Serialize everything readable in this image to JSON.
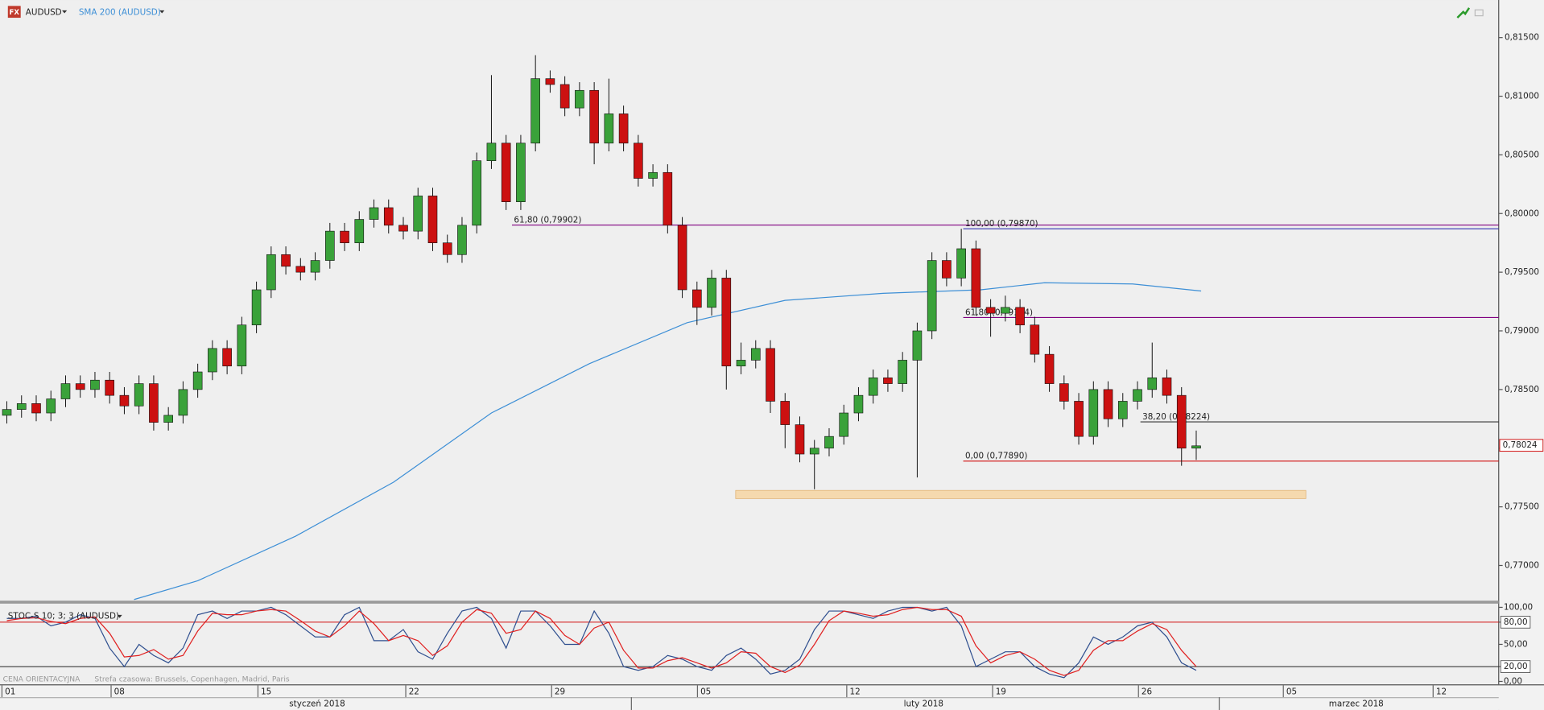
{
  "header": {
    "icon": "FX",
    "symbol": "AUDUSD",
    "footer": "CENA ORIENTACYJNA",
    "timezone": "Strefa czasowa: Brussels, Copenhagen, Madrid, Paris"
  },
  "chart_data": [
    {
      "type": "candlestick",
      "up_color": "#3aa23a",
      "down_color": "#cc1111",
      "grid": false,
      "xlim": [
        -0.4,
        305.8
      ],
      "ylim": [
        0.767,
        0.8182
      ],
      "yticks": [
        {
          "value": 0.77,
          "label": "0,77000"
        },
        {
          "value": 0.775,
          "label": "0,77500"
        },
        {
          "value": 0.78,
          "label": "0,78000"
        },
        {
          "value": 0.785,
          "label": "0,78500"
        },
        {
          "value": 0.79,
          "label": "0,79000"
        },
        {
          "value": 0.795,
          "label": "0,79500"
        },
        {
          "value": 0.8,
          "label": "0,80000"
        },
        {
          "value": 0.805,
          "label": "0,80500"
        },
        {
          "value": 0.81,
          "label": "0,81000"
        },
        {
          "value": 0.815,
          "label": "0,81500"
        }
      ],
      "xticks": [
        {
          "value": 0,
          "label": "01"
        },
        {
          "value": 22.3,
          "label": "08"
        },
        {
          "value": 52.3,
          "label": "15"
        },
        {
          "value": 82.5,
          "label": "22"
        },
        {
          "value": 112.3,
          "label": "29"
        },
        {
          "value": 142.1,
          "label": "05"
        },
        {
          "value": 172.6,
          "label": "12"
        },
        {
          "value": 202.4,
          "label": "19"
        },
        {
          "value": 232.2,
          "label": "26"
        },
        {
          "value": 261.8,
          "label": "05"
        },
        {
          "value": 292.4,
          "label": "12"
        }
      ],
      "months": [
        {
          "value": 64.4,
          "label": "styczeń 2018"
        },
        {
          "value": 188.3,
          "label": "luty 2018"
        },
        {
          "value": 276.7,
          "label": "marzec 2018"
        }
      ],
      "month_breaks": [
        128.6,
        248.7
      ],
      "x": [
        1,
        4,
        7,
        10,
        13,
        16,
        19,
        22,
        25,
        28,
        31,
        34,
        37,
        40,
        43,
        46,
        49,
        52,
        55,
        58,
        61,
        64,
        67,
        70,
        73,
        76,
        79,
        82,
        85,
        88,
        91,
        94,
        97,
        100,
        103,
        106,
        109,
        112,
        115,
        118,
        121,
        124,
        127,
        130,
        133,
        136,
        139,
        142,
        145,
        148,
        151,
        154,
        157,
        160,
        163,
        166,
        169,
        172,
        175,
        178,
        181,
        184,
        187,
        190,
        193,
        196,
        199,
        202,
        205,
        208,
        211,
        214,
        217,
        220,
        223,
        226,
        229,
        232,
        235,
        238,
        241,
        244
      ],
      "open": [
        0.7828,
        0.7833,
        0.7838,
        0.783,
        0.7842,
        0.7855,
        0.785,
        0.7858,
        0.7845,
        0.7836,
        0.7855,
        0.7822,
        0.7828,
        0.785,
        0.7865,
        0.7885,
        0.787,
        0.7905,
        0.7935,
        0.7965,
        0.7955,
        0.795,
        0.796,
        0.7985,
        0.7975,
        0.7995,
        0.8005,
        0.799,
        0.7985,
        0.8015,
        0.7975,
        0.7965,
        0.799,
        0.8045,
        0.806,
        0.801,
        0.806,
        0.8115,
        0.811,
        0.809,
        0.8105,
        0.806,
        0.8085,
        0.806,
        0.803,
        0.8035,
        0.799,
        0.7935,
        0.792,
        0.7945,
        0.787,
        0.7875,
        0.7885,
        0.784,
        0.782,
        0.7795,
        0.78,
        0.781,
        0.783,
        0.7845,
        0.786,
        0.7855,
        0.7875,
        0.79,
        0.796,
        0.7945,
        0.797,
        0.792,
        0.7915,
        0.792,
        0.7905,
        0.788,
        0.7855,
        0.784,
        0.781,
        0.785,
        0.7825,
        0.784,
        0.785,
        0.786,
        0.7845,
        0.78
      ],
      "high": [
        0.784,
        0.7845,
        0.7845,
        0.7849,
        0.7862,
        0.7862,
        0.7865,
        0.7865,
        0.7852,
        0.7862,
        0.7862,
        0.7835,
        0.7857,
        0.7872,
        0.7892,
        0.7892,
        0.7912,
        0.7942,
        0.7972,
        0.7972,
        0.7962,
        0.7967,
        0.7992,
        0.7992,
        0.8002,
        0.8012,
        0.8012,
        0.7997,
        0.8022,
        0.8022,
        0.7982,
        0.7997,
        0.8052,
        0.8118,
        0.8067,
        0.8067,
        0.8135,
        0.8122,
        0.8117,
        0.8112,
        0.8112,
        0.8115,
        0.8092,
        0.8067,
        0.8042,
        0.8042,
        0.7997,
        0.7942,
        0.7952,
        0.7952,
        0.789,
        0.7892,
        0.7892,
        0.7847,
        0.7827,
        0.7807,
        0.7817,
        0.7837,
        0.7852,
        0.7867,
        0.7867,
        0.7882,
        0.7907,
        0.7967,
        0.7967,
        0.7987,
        0.7977,
        0.7927,
        0.793,
        0.7927,
        0.7912,
        0.7887,
        0.7862,
        0.7847,
        0.7857,
        0.7857,
        0.7847,
        0.7857,
        0.789,
        0.7867,
        0.7852,
        0.7815
      ],
      "low": [
        0.7821,
        0.7826,
        0.7823,
        0.7823,
        0.7835,
        0.7843,
        0.7843,
        0.7838,
        0.7829,
        0.7829,
        0.7815,
        0.7815,
        0.7821,
        0.7843,
        0.7858,
        0.7863,
        0.7863,
        0.7898,
        0.7928,
        0.7948,
        0.7943,
        0.7943,
        0.7953,
        0.7968,
        0.7968,
        0.7988,
        0.7983,
        0.7978,
        0.7978,
        0.7968,
        0.7958,
        0.7958,
        0.7983,
        0.8038,
        0.8003,
        0.8003,
        0.8053,
        0.8103,
        0.8083,
        0.8083,
        0.8042,
        0.8053,
        0.8053,
        0.8023,
        0.8023,
        0.7983,
        0.7928,
        0.7905,
        0.7913,
        0.785,
        0.7863,
        0.7868,
        0.783,
        0.78,
        0.7788,
        0.7765,
        0.7793,
        0.7803,
        0.7823,
        0.7838,
        0.7848,
        0.7848,
        0.7775,
        0.7893,
        0.7938,
        0.7938,
        0.7913,
        0.7895,
        0.7908,
        0.7898,
        0.7873,
        0.7848,
        0.7833,
        0.7803,
        0.7803,
        0.7818,
        0.7818,
        0.7833,
        0.7843,
        0.7838,
        0.7785,
        0.779
      ],
      "close": [
        0.7833,
        0.7838,
        0.783,
        0.7842,
        0.7855,
        0.785,
        0.7858,
        0.7845,
        0.7836,
        0.7855,
        0.7822,
        0.7828,
        0.785,
        0.7865,
        0.7885,
        0.787,
        0.7905,
        0.7935,
        0.7965,
        0.7955,
        0.795,
        0.796,
        0.7985,
        0.7975,
        0.7995,
        0.8005,
        0.799,
        0.7985,
        0.8015,
        0.7975,
        0.7965,
        0.799,
        0.8045,
        0.806,
        0.801,
        0.806,
        0.8115,
        0.811,
        0.809,
        0.8105,
        0.806,
        0.8085,
        0.806,
        0.803,
        0.8035,
        0.799,
        0.7935,
        0.792,
        0.7945,
        0.787,
        0.7875,
        0.7885,
        0.784,
        0.782,
        0.7795,
        0.78,
        0.781,
        0.783,
        0.7845,
        0.786,
        0.7855,
        0.7875,
        0.79,
        0.796,
        0.7945,
        0.797,
        0.792,
        0.7915,
        0.792,
        0.7905,
        0.788,
        0.7855,
        0.784,
        0.781,
        0.785,
        0.7825,
        0.784,
        0.785,
        0.786,
        0.7845,
        0.78,
        0.7802
      ],
      "overlays": [
        {
          "name": "SMA 200 (AUDUSD)",
          "color": "#3d8fd6",
          "x": [
            27,
            40,
            60,
            80,
            100,
            120,
            140,
            160,
            180,
            200,
            213,
            231,
            245
          ],
          "values": [
            0.7671,
            0.7687,
            0.7725,
            0.7771,
            0.783,
            0.7872,
            0.7907,
            0.7926,
            0.7932,
            0.7935,
            0.7941,
            0.794,
            0.7934
          ]
        }
      ],
      "fib_levels": [
        {
          "label": "61,80 (0,79902)",
          "value": 0.79902,
          "x_start": 104.2,
          "color": "#800080"
        },
        {
          "label": "100,00 (0,79870)",
          "value": 0.7987,
          "x_start": 196.4,
          "color": "#3030b0"
        },
        {
          "label": "61,80 (0,79114)",
          "value": 0.79114,
          "x_start": 196.4,
          "color": "#800080"
        },
        {
          "label": "38,20 (0,78224)",
          "value": 0.78224,
          "x_start": 232.6,
          "color": "#333333"
        },
        {
          "label": "0,00 (0,77890)",
          "value": 0.7789,
          "x_start": 196.4,
          "color": "#d01010"
        }
      ],
      "zone": {
        "low": 0.7757,
        "high": 0.7764,
        "x_start": 149.9,
        "x_end": 266.4,
        "color": "#f5d9ae"
      },
      "last_price": {
        "value": 0.78024,
        "label": "0,78024",
        "color": "#d01010"
      }
    },
    {
      "type": "line",
      "title": "STOC-S 10; 3; 3 (AUDUSD)",
      "ylim": [
        -4,
        105
      ],
      "yticks": [
        {
          "value": 0,
          "label": "0,00"
        },
        {
          "value": 20,
          "label": "20,00"
        },
        {
          "value": 50,
          "label": "50,00"
        },
        {
          "value": 80,
          "label": "80,00"
        },
        {
          "value": 100,
          "label": "100,00"
        }
      ],
      "levels": [
        {
          "value": 80,
          "color": "#d01010"
        },
        {
          "value": 20,
          "color": "#222222"
        }
      ],
      "series": [
        {
          "color": "#2f4f8f",
          "values": [
            85,
            85,
            88,
            75,
            80,
            90,
            85,
            45,
            20,
            50,
            35,
            25,
            45,
            90,
            95,
            85,
            95,
            95,
            100,
            90,
            75,
            60,
            60,
            90,
            100,
            55,
            55,
            70,
            40,
            30,
            65,
            95,
            100,
            85,
            45,
            95,
            95,
            75,
            50,
            50,
            95,
            65,
            20,
            15,
            20,
            35,
            30,
            20,
            15,
            35,
            45,
            30,
            10,
            15,
            30,
            70,
            95,
            95,
            90,
            85,
            95,
            100,
            100,
            95,
            100,
            75,
            20,
            30,
            40,
            40,
            20,
            10,
            5,
            25,
            60,
            50,
            60,
            75,
            80,
            60,
            25,
            15
          ]
        },
        {
          "color": "#e02020",
          "values": [
            82,
            85,
            86,
            81,
            78,
            85,
            87,
            65,
            33,
            35,
            43,
            30,
            35,
            68,
            92,
            90,
            90,
            95,
            97,
            95,
            82,
            68,
            60,
            75,
            95,
            78,
            55,
            62,
            55,
            35,
            48,
            80,
            97,
            92,
            65,
            70,
            95,
            85,
            62,
            50,
            72,
            80,
            42,
            18,
            18,
            28,
            32,
            25,
            18,
            25,
            40,
            38,
            20,
            12,
            22,
            50,
            82,
            95,
            92,
            88,
            90,
            97,
            100,
            97,
            97,
            88,
            48,
            25,
            35,
            40,
            30,
            15,
            8,
            15,
            42,
            55,
            55,
            68,
            78,
            70,
            42,
            20
          ]
        }
      ]
    }
  ]
}
